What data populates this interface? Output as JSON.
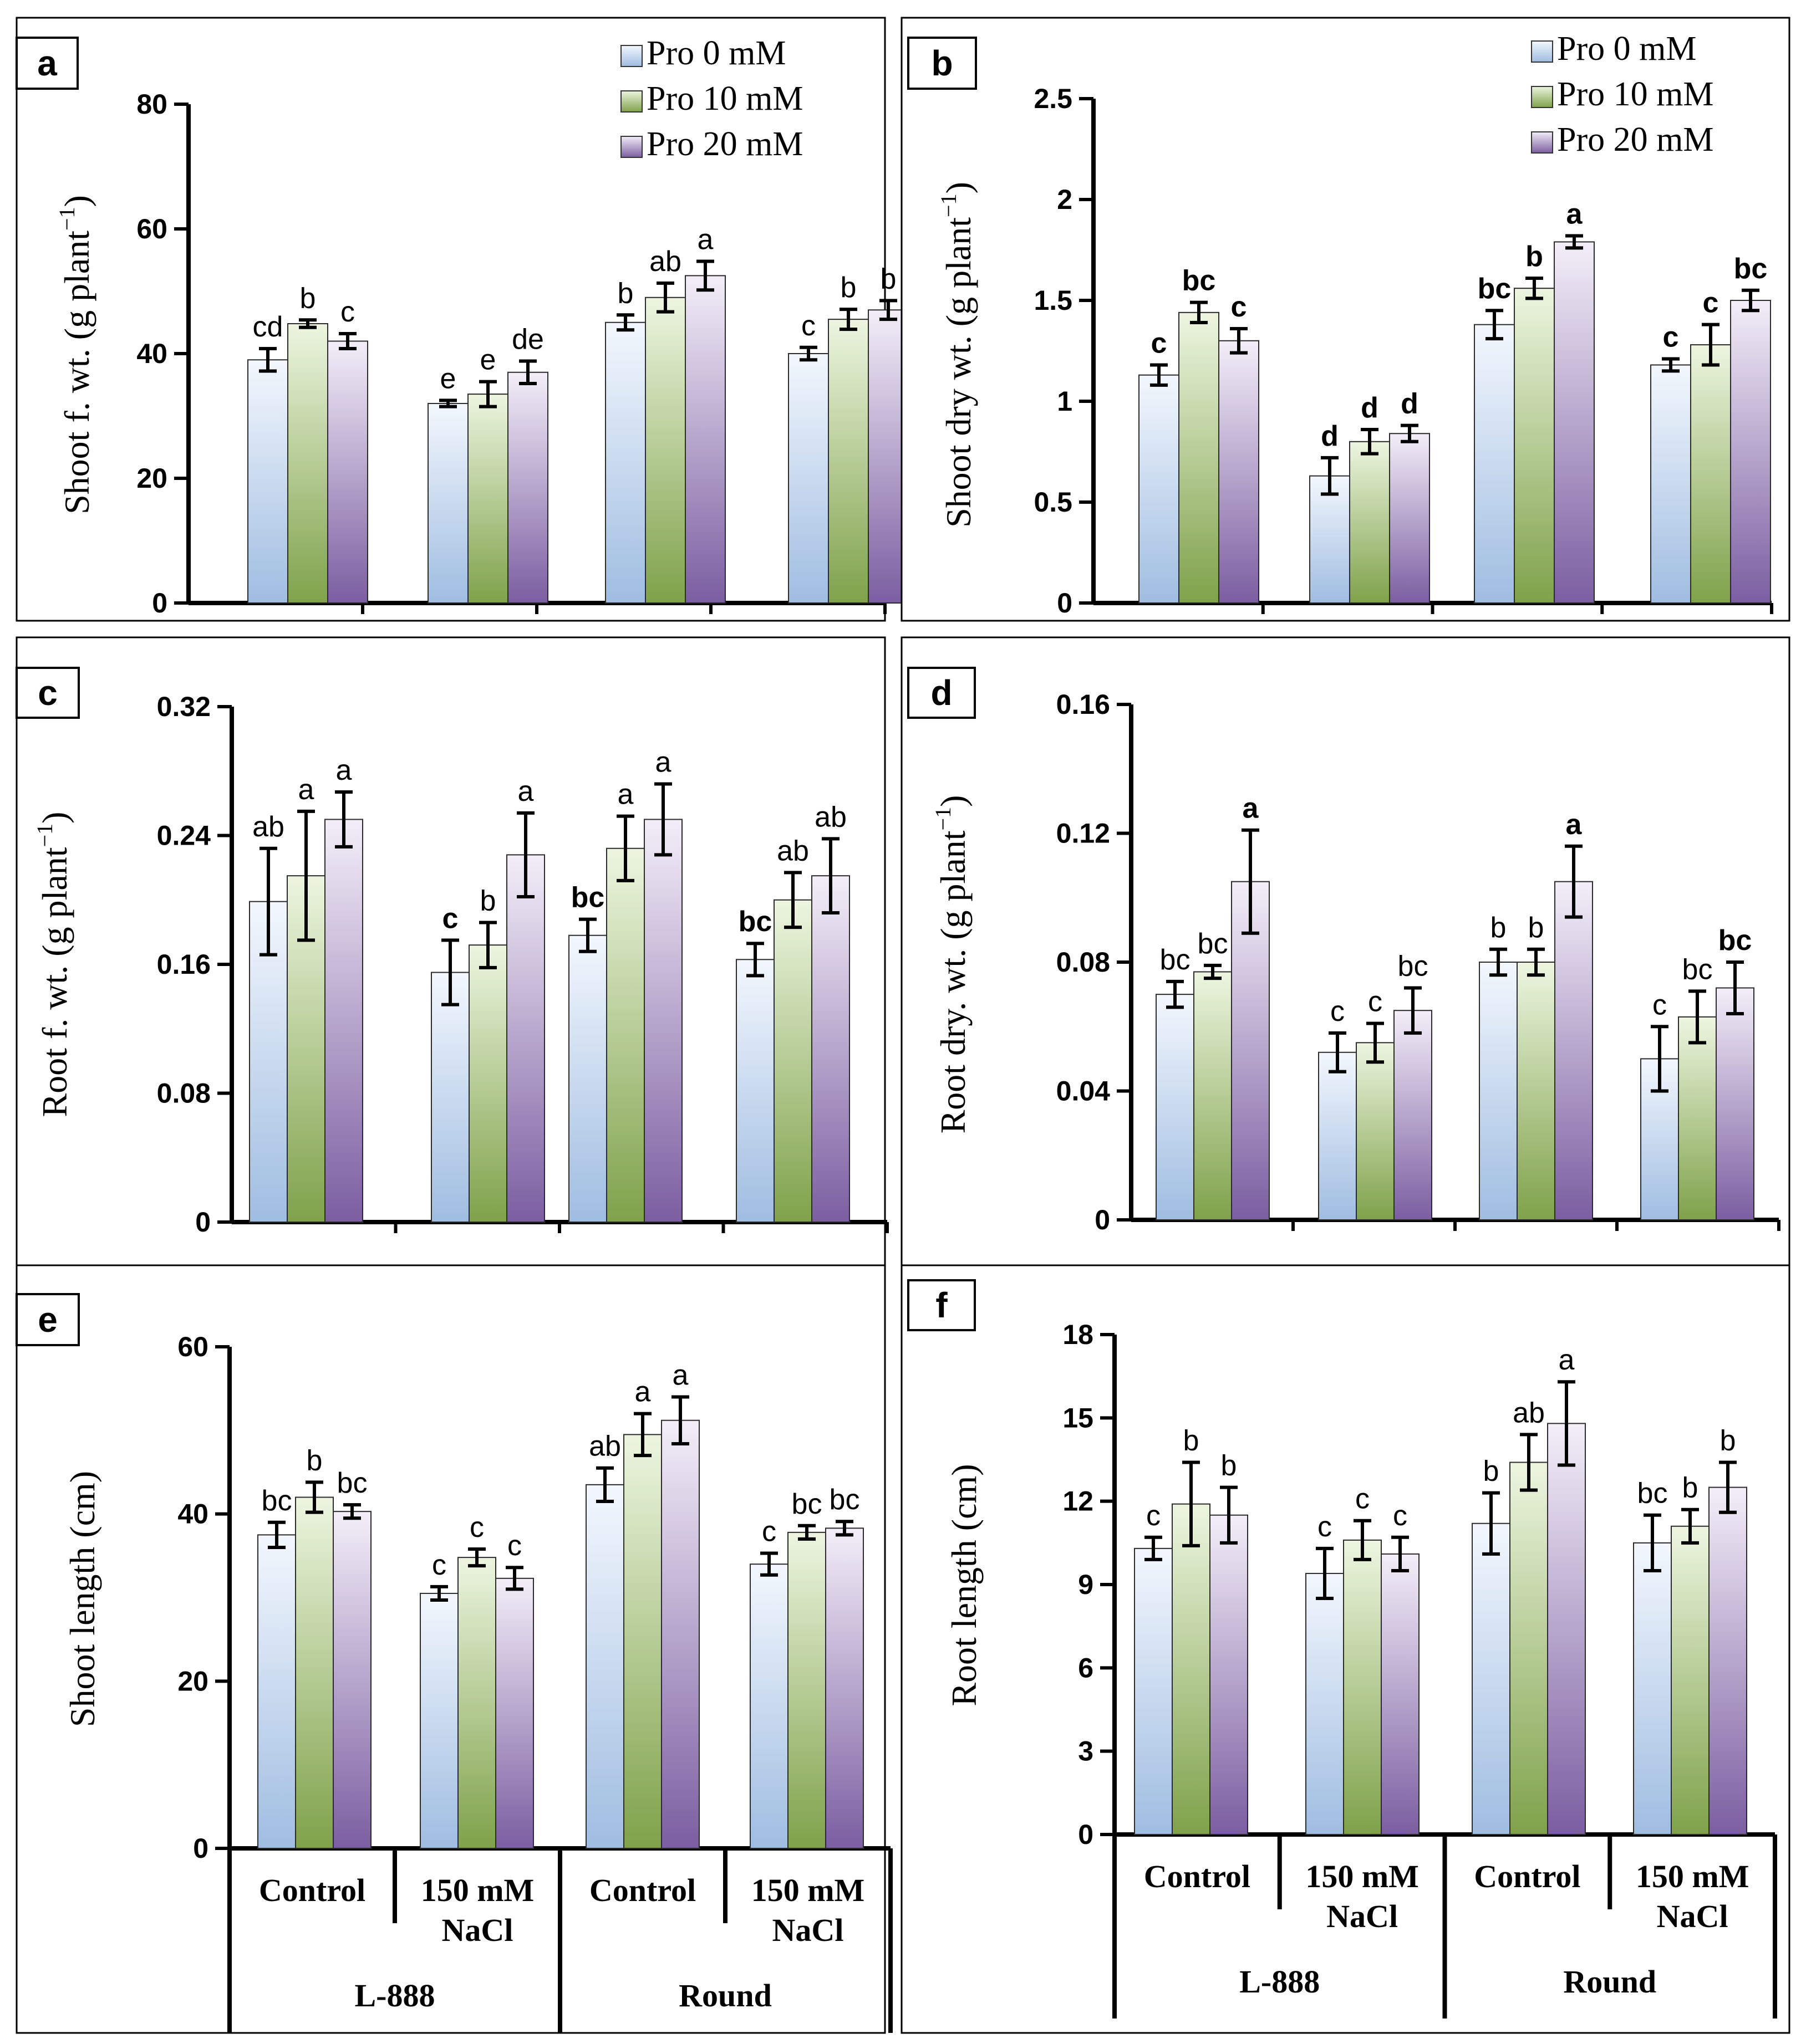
{
  "chart_data": [
    {
      "id": "a",
      "type": "bar",
      "panel_label": "a",
      "ylabel_main": "Shoot f. wt. (g plant",
      "ylabel_sup": "−1",
      "ylabel_close": ")",
      "ylim": [
        0,
        80
      ],
      "yticks": [
        "0",
        "20",
        "40",
        "60",
        "80"
      ],
      "letters_bold": false,
      "series": [
        {
          "name": "Pro 0 mM",
          "values": [
            39,
            32,
            45,
            40
          ],
          "errors": [
            1.8,
            0.5,
            1.2,
            1.0
          ],
          "letters": [
            "cd",
            "e",
            "b",
            "c"
          ]
        },
        {
          "name": "Pro 10 mM",
          "values": [
            44.8,
            33.5,
            49,
            45.5
          ],
          "errors": [
            0.6,
            2.0,
            2.3,
            1.6
          ],
          "letters": [
            "b",
            "e",
            "ab",
            "b"
          ]
        },
        {
          "name": "Pro 20 mM",
          "values": [
            42,
            37,
            52.5,
            47
          ],
          "errors": [
            1.2,
            1.8,
            2.3,
            1.5
          ],
          "letters": [
            "c",
            "de",
            "a",
            "b"
          ]
        }
      ],
      "legend": [
        "Pro 0 mM",
        "Pro 10 mM",
        "Pro 20 mM"
      ]
    },
    {
      "id": "b",
      "type": "bar",
      "panel_label": "b",
      "ylabel_main": "Shoot dry wt. (g plant",
      "ylabel_sup": "−1",
      "ylabel_close": ")",
      "ylim": [
        0,
        2.5
      ],
      "yticks": [
        "0",
        "0.5",
        "1",
        "1.5",
        "2",
        "2.5"
      ],
      "letters_bold": true,
      "series": [
        {
          "name": "Pro 0 mM",
          "values": [
            1.13,
            0.63,
            1.38,
            1.18
          ],
          "errors": [
            0.05,
            0.09,
            0.07,
            0.03
          ],
          "letters": [
            "c",
            "d",
            "bc",
            "c"
          ]
        },
        {
          "name": "Pro 10 mM",
          "values": [
            1.44,
            0.8,
            1.56,
            1.28
          ],
          "errors": [
            0.05,
            0.06,
            0.05,
            0.1
          ],
          "letters": [
            "bc",
            "d",
            "b",
            "c"
          ]
        },
        {
          "name": "Pro 20 mM",
          "values": [
            1.3,
            0.84,
            1.79,
            1.5
          ],
          "errors": [
            0.06,
            0.04,
            0.03,
            0.05
          ],
          "letters": [
            "c",
            "d",
            "a",
            "bc"
          ]
        }
      ],
      "legend": [
        "Pro 0 mM",
        "Pro 10 mM",
        "Pro 20 mM"
      ]
    },
    {
      "id": "c",
      "type": "bar",
      "panel_label": "c",
      "ylabel_main": "Root f. wt. (g plant",
      "ylabel_sup": "−1",
      "ylabel_close": ")",
      "ylim": [
        0,
        0.32
      ],
      "yticks": [
        "0",
        "0.08",
        "0.16",
        "0.24",
        "0.32"
      ],
      "letters_bold": false,
      "series": [
        {
          "name": "Pro 0 mM",
          "values": [
            0.199,
            0.155,
            0.178,
            0.163
          ],
          "errors": [
            0.033,
            0.02,
            0.01,
            0.01
          ],
          "letters": [
            "ab",
            "c",
            "bc",
            "bc"
          ]
        },
        {
          "name": "Pro 10 mM",
          "values": [
            0.215,
            0.172,
            0.232,
            0.2
          ],
          "errors": [
            0.04,
            0.014,
            0.02,
            0.017
          ],
          "letters": [
            "a",
            "b",
            "a",
            "ab"
          ]
        },
        {
          "name": "Pro 20 mM",
          "values": [
            0.25,
            0.228,
            0.25,
            0.215
          ],
          "errors": [
            0.017,
            0.026,
            0.022,
            0.023
          ],
          "letters": [
            "a",
            "a",
            "a",
            "ab"
          ]
        }
      ],
      "bold_letters": [
        "c",
        "bc",
        "bc"
      ],
      "legend": []
    },
    {
      "id": "d",
      "type": "bar",
      "panel_label": "d",
      "ylabel_main": "Root dry. wt. (g plant",
      "ylabel_sup": "−1",
      "ylabel_close": ")",
      "ylim": [
        0,
        0.16
      ],
      "yticks": [
        "0",
        "0.04",
        "0.08",
        "0.12",
        "0.16"
      ],
      "letters_bold": false,
      "series": [
        {
          "name": "Pro 0 mM",
          "values": [
            0.07,
            0.052,
            0.08,
            0.05
          ],
          "errors": [
            0.004,
            0.006,
            0.004,
            0.01
          ],
          "letters": [
            "bc",
            "c",
            "b",
            "c"
          ]
        },
        {
          "name": "Pro 10 mM",
          "values": [
            0.077,
            0.055,
            0.08,
            0.063
          ],
          "errors": [
            0.002,
            0.006,
            0.004,
            0.008
          ],
          "letters": [
            "bc",
            "c",
            "b",
            "bc"
          ]
        },
        {
          "name": "Pro 20 mM",
          "values": [
            0.105,
            0.065,
            0.105,
            0.072
          ],
          "errors": [
            0.016,
            0.007,
            0.011,
            0.008
          ],
          "letters": [
            "a",
            "bc",
            "a",
            "bc"
          ]
        }
      ],
      "legend": []
    },
    {
      "id": "e",
      "type": "bar",
      "panel_label": "e",
      "ylabel_main": "Shoot length (cm)",
      "ylabel_sup": "",
      "ylabel_close": "",
      "ylim": [
        0,
        60
      ],
      "yticks": [
        "0",
        "20",
        "40",
        "60"
      ],
      "letters_bold": false,
      "series": [
        {
          "name": "Pro 0 mM",
          "values": [
            37.5,
            30.5,
            43.5,
            34
          ],
          "errors": [
            1.5,
            0.8,
            2.0,
            1.3
          ],
          "letters": [
            "bc",
            "c",
            "ab",
            "c"
          ]
        },
        {
          "name": "Pro 10 mM",
          "values": [
            42,
            34.8,
            49.5,
            37.8
          ],
          "errors": [
            1.8,
            1.0,
            2.5,
            0.8
          ],
          "letters": [
            "b",
            "c",
            "a",
            "bc"
          ]
        },
        {
          "name": "Pro 20 mM",
          "values": [
            40.3,
            32.3,
            51.2,
            38.3
          ],
          "errors": [
            0.8,
            1.3,
            2.8,
            0.8
          ],
          "letters": [
            "bc",
            "c",
            "a",
            "bc"
          ]
        }
      ],
      "legend": []
    },
    {
      "id": "f",
      "type": "bar",
      "panel_label": "f",
      "ylabel_main": "Root length (cm)",
      "ylabel_sup": "",
      "ylabel_close": "",
      "ylim": [
        0,
        18
      ],
      "yticks": [
        "0",
        "3",
        "6",
        "9",
        "12",
        "15",
        "18"
      ],
      "letters_bold": false,
      "series": [
        {
          "name": "Pro 0 mM",
          "values": [
            10.3,
            9.4,
            11.2,
            10.5
          ],
          "errors": [
            0.4,
            0.9,
            1.1,
            1.0
          ],
          "letters": [
            "c",
            "c",
            "b",
            "bc"
          ]
        },
        {
          "name": "Pro 10 mM",
          "values": [
            11.9,
            10.6,
            13.4,
            11.1
          ],
          "errors": [
            1.5,
            0.7,
            1.0,
            0.6
          ],
          "letters": [
            "b",
            "c",
            "ab",
            "b"
          ]
        },
        {
          "name": "Pro 20 mM",
          "values": [
            11.5,
            10.1,
            14.8,
            12.5
          ],
          "errors": [
            1.0,
            0.6,
            1.5,
            0.9
          ],
          "letters": [
            "b",
            "c",
            "a",
            "b"
          ]
        }
      ],
      "legend": []
    }
  ],
  "categories": {
    "treatments": [
      {
        "line1": "Control",
        "line2": ""
      },
      {
        "line1": "150 mM",
        "line2": "NaCl"
      },
      {
        "line1": "Control",
        "line2": ""
      },
      {
        "line1": "150 mM",
        "line2": "NaCl"
      }
    ],
    "cultivars": [
      "L-888",
      "Round"
    ]
  },
  "colors": {
    "series": [
      {
        "top": "#f3f7fd",
        "bottom": "#9fbde1"
      },
      {
        "top": "#edf5e0",
        "bottom": "#7fa24a"
      },
      {
        "top": "#f3eef8",
        "bottom": "#7b5ea1"
      }
    ],
    "axis": "#000000"
  }
}
